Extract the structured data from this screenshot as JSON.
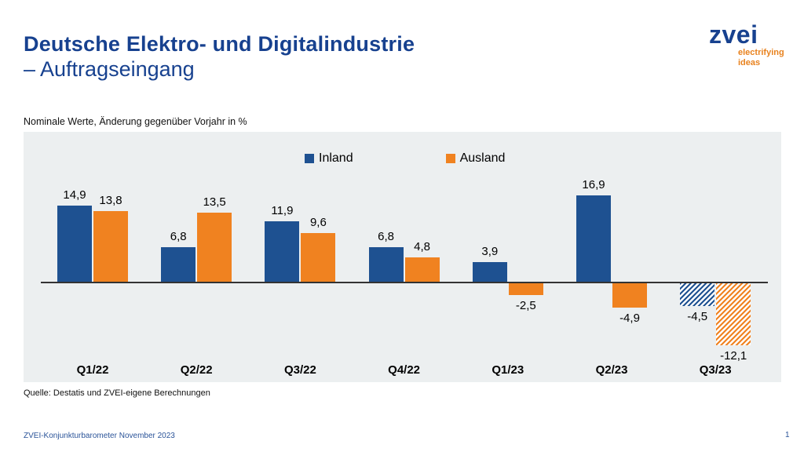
{
  "header": {
    "title_line1": "Deutsche Elektro- und Digitalindustrie",
    "title_line2": "– Auftragseingang"
  },
  "logo": {
    "brand": "zvei",
    "tagline_line1": "electrifying",
    "tagline_line2": "ideas"
  },
  "subtitle": "Nominale Werte, Änderung gegenüber Vorjahr in %",
  "source": "Quelle: Destatis und ZVEI-eigene Berechnungen",
  "footer": {
    "left": "ZVEI-Konjunkturbarometer November 2023",
    "page": "1"
  },
  "colors": {
    "inland": "#1E5191",
    "ausland": "#F08220",
    "title_blue": "#17418F",
    "tagline_orange": "#E8821E",
    "panel_bg": "#ECEFF0",
    "axis": "#333333",
    "footer_blue": "#2B5499"
  },
  "chart_data": {
    "type": "bar",
    "title": "Deutsche Elektro- und Digitalindustrie – Auftragseingang",
    "subtitle": "Nominale Werte, Änderung gegenüber Vorjahr in %",
    "categories": [
      "Q1/22",
      "Q2/22",
      "Q3/22",
      "Q4/22",
      "Q1/23",
      "Q2/23",
      "Q3/23"
    ],
    "series": [
      {
        "name": "Inland",
        "color": "#1E5191",
        "values": [
          14.9,
          6.8,
          11.9,
          6.8,
          3.9,
          16.9,
          -4.5
        ]
      },
      {
        "name": "Ausland",
        "color": "#F08220",
        "values": [
          13.8,
          13.5,
          9.6,
          4.8,
          -2.5,
          -4.9,
          -12.1
        ]
      }
    ],
    "hatched_categories": [
      "Q3/23"
    ],
    "value_labels_visible": true,
    "decimal_separator": ",",
    "xlabel": "",
    "ylabel": "",
    "ylim": [
      -14,
      18
    ],
    "grid": false,
    "legend_position": "top-center",
    "y_axis_visible": false,
    "zero_line": true
  }
}
